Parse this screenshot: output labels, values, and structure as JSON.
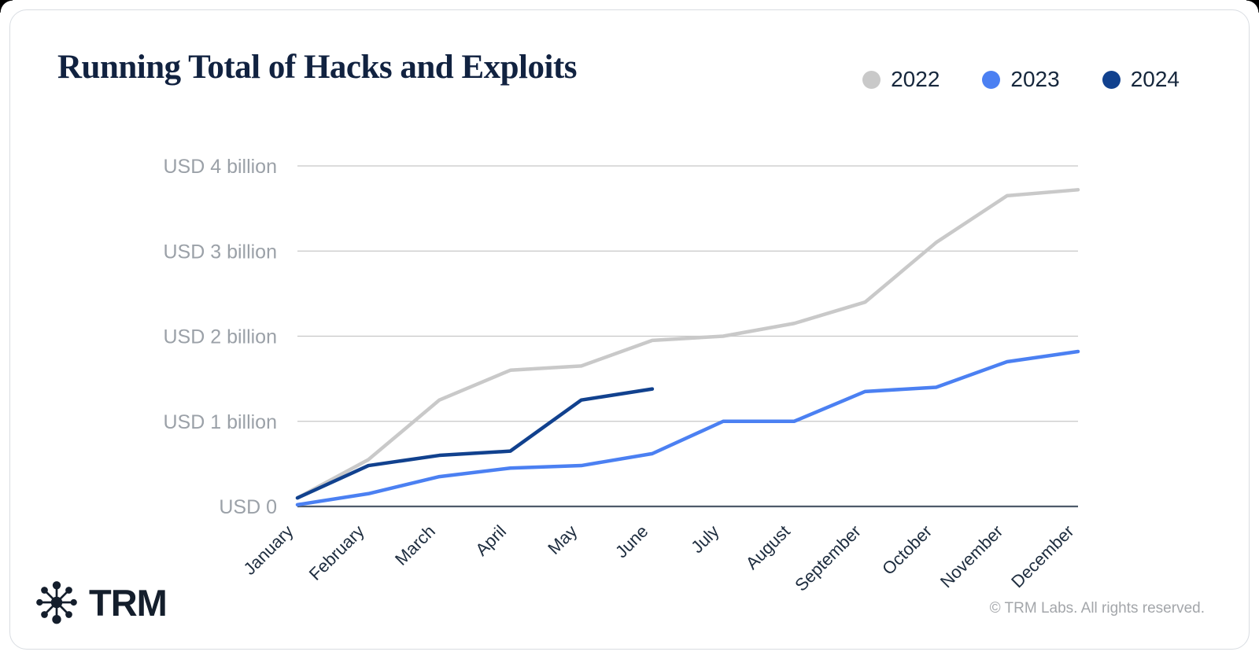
{
  "header": {
    "title": "Running Total of Hacks and Exploits"
  },
  "chart_data": {
    "type": "line",
    "title": "Running Total of Hacks and Exploits",
    "unit": "USD billions",
    "x": [
      "January",
      "February",
      "March",
      "April",
      "May",
      "June",
      "July",
      "August",
      "September",
      "October",
      "November",
      "December"
    ],
    "ylim": [
      0,
      4
    ],
    "grid": "horizontal",
    "legend_position": "top-right",
    "grid_color": "#c7c7c7",
    "axis_color": "#4e5a6a",
    "tick_color": "#9ba1a8",
    "xtick_color": "#1d2c3e",
    "y_ticks": [
      {
        "value": 0,
        "label": "USD 0"
      },
      {
        "value": 1,
        "label": "USD 1 billion"
      },
      {
        "value": 2,
        "label": "USD 2 billion"
      },
      {
        "value": 3,
        "label": "USD 3 billion"
      },
      {
        "value": 4,
        "label": "USD 4 billion"
      }
    ],
    "series": [
      {
        "name": "2022",
        "color": "#c9c9c9",
        "values": [
          0.1,
          0.55,
          1.25,
          1.6,
          1.65,
          1.95,
          2.0,
          2.15,
          2.4,
          3.1,
          3.65,
          3.72
        ]
      },
      {
        "name": "2023",
        "color": "#4b80f2",
        "values": [
          0.02,
          0.15,
          0.35,
          0.45,
          0.48,
          0.62,
          1.0,
          1.0,
          1.35,
          1.4,
          1.7,
          1.82
        ]
      },
      {
        "name": "2024",
        "color": "#11418e",
        "values": [
          0.1,
          0.48,
          0.6,
          0.65,
          1.25,
          1.38
        ]
      }
    ]
  },
  "footer": {
    "logo_text": "TRM",
    "copyright": "© TRM Labs. All rights reserved."
  }
}
